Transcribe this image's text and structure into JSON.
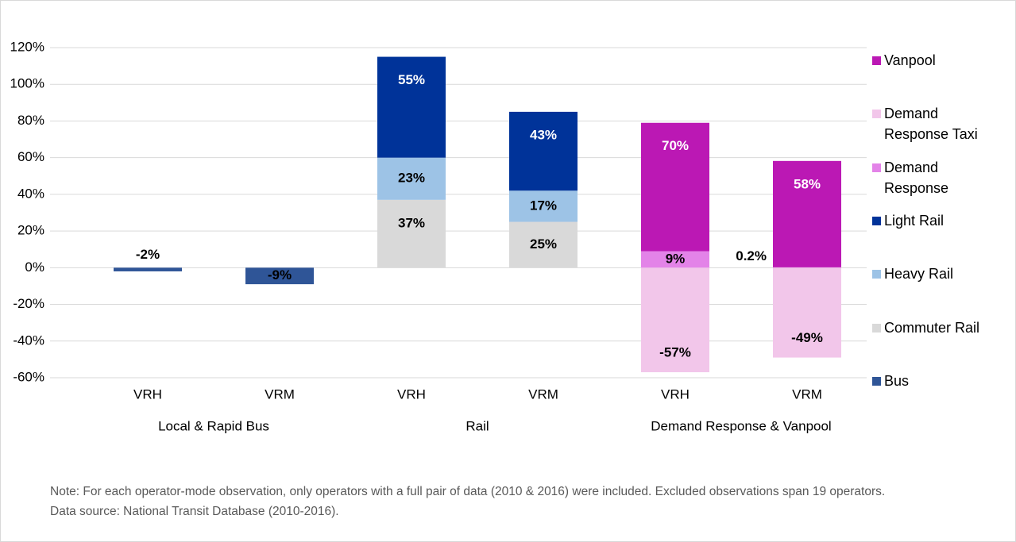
{
  "chart_data": {
    "type": "stacked_bar",
    "categories": [
      "VRH",
      "VRM",
      "VRH",
      "VRM",
      "VRH",
      "VRM"
    ],
    "group_labels": [
      "Local & Rapid Bus",
      "Rail",
      "Demand Response & Vanpool"
    ],
    "ylim": [
      -60,
      120
    ],
    "yticks": [
      {
        "value": -60,
        "label": "-60%"
      },
      {
        "value": -40,
        "label": "-40%"
      },
      {
        "value": -20,
        "label": "-20%"
      },
      {
        "value": 0,
        "label": "0%"
      },
      {
        "value": 20,
        "label": "20%"
      },
      {
        "value": 40,
        "label": "40%"
      },
      {
        "value": 60,
        "label": "60%"
      },
      {
        "value": 80,
        "label": "80%"
      },
      {
        "value": 100,
        "label": "100%"
      },
      {
        "value": 120,
        "label": "120%"
      }
    ],
    "grid": true,
    "series": [
      {
        "name": "Bus",
        "color": "#2f5597",
        "values": [
          -2,
          -9,
          null,
          null,
          null,
          null
        ],
        "value_labels": [
          "-2%",
          "-9%",
          null,
          null,
          null,
          null
        ]
      },
      {
        "name": "Commuter Rail",
        "color": "#d9d9d9",
        "values": [
          null,
          null,
          37,
          25,
          null,
          null
        ],
        "value_labels": [
          null,
          null,
          "37%",
          "25%",
          null,
          null
        ]
      },
      {
        "name": "Heavy Rail",
        "color": "#9dc3e6",
        "values": [
          null,
          null,
          23,
          17,
          null,
          null
        ],
        "value_labels": [
          null,
          null,
          "23%",
          "17%",
          null,
          null
        ]
      },
      {
        "name": "Light Rail",
        "color": "#003399",
        "values": [
          null,
          null,
          55,
          43,
          null,
          null
        ],
        "value_labels": [
          null,
          null,
          "55%",
          "43%",
          null,
          null
        ]
      },
      {
        "name": "Demand Response",
        "color": "#e383e8",
        "values": [
          null,
          null,
          null,
          null,
          9,
          0.2
        ],
        "value_labels": [
          null,
          null,
          null,
          null,
          "9%",
          "0.2%"
        ]
      },
      {
        "name": "Demand Response Taxi",
        "color": "#f2c6ea",
        "values": [
          null,
          null,
          null,
          null,
          -57,
          -49
        ],
        "value_labels": [
          null,
          null,
          null,
          null,
          "-57%",
          "-49%"
        ]
      },
      {
        "name": "Vanpool",
        "color": "#bb18b4",
        "values": [
          null,
          null,
          null,
          null,
          70,
          58
        ],
        "value_labels": [
          null,
          null,
          null,
          null,
          "70%",
          "58%"
        ]
      }
    ],
    "note": "Note: For each operator-mode observation, only operators with a full pair of data (2010 & 2016) were included. Excluded observations span 19 operators.",
    "source": "Data source: National Transit Database (2010-2016)."
  }
}
